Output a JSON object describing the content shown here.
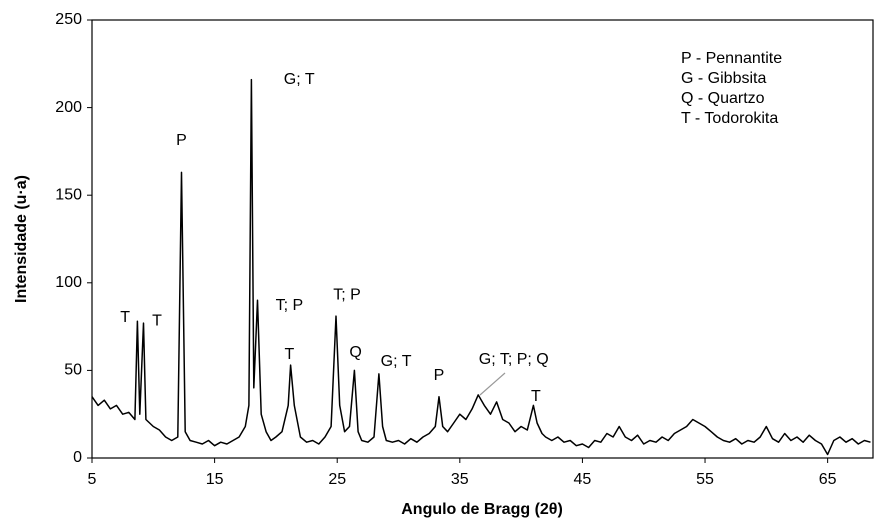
{
  "chart_data": {
    "type": "line",
    "x_label": "Angulo de Bragg (2θ)",
    "y_label": "Intensidade (u·a)",
    "xlim": [
      5,
      68.7
    ],
    "ylim": [
      0,
      250
    ],
    "xticks": [
      5,
      15,
      25,
      35,
      45,
      55,
      65
    ],
    "yticks": [
      0,
      50,
      100,
      150,
      200,
      250
    ],
    "key": [
      "P - Pennantite",
      "G - Gibbsita",
      "Q - Quartzo",
      "T - Todorokita"
    ],
    "series": [
      {
        "color": "#000000",
        "x": [
          5,
          5.5,
          6,
          6.5,
          7,
          7.5,
          8,
          8.5,
          8.7,
          8.9,
          9.2,
          9.4,
          9.7,
          10,
          10.5,
          11,
          11.5,
          12,
          12.3,
          12.6,
          13,
          13.5,
          14,
          14.5,
          15,
          15.5,
          16,
          16.5,
          17,
          17.5,
          17.8,
          18,
          18.2,
          18.5,
          18.8,
          19.2,
          19.6,
          20,
          20.5,
          21,
          21.2,
          21.5,
          22,
          22.5,
          23,
          23.5,
          24,
          24.5,
          24.9,
          25.2,
          25.6,
          26,
          26.4,
          26.7,
          27,
          27.5,
          28,
          28.4,
          28.7,
          29,
          29.5,
          30,
          30.5,
          31,
          31.5,
          32,
          32.5,
          33,
          33.3,
          33.6,
          34,
          34.5,
          35,
          35.5,
          36,
          36.5,
          37,
          37.5,
          38,
          38.5,
          39,
          39.5,
          40,
          40.5,
          41,
          41.3,
          41.7,
          42,
          42.5,
          43,
          43.5,
          44,
          44.5,
          45,
          45.5,
          46,
          46.5,
          47,
          47.5,
          48,
          48.5,
          49,
          49.5,
          50,
          50.5,
          51,
          51.5,
          52,
          52.5,
          53,
          53.5,
          54,
          54.5,
          55,
          55.5,
          56,
          56.5,
          57,
          57.5,
          58,
          58.5,
          59,
          59.5,
          60,
          60.5,
          61,
          61.5,
          62,
          62.5,
          63,
          63.5,
          64,
          64.5,
          65,
          65.5,
          66,
          66.5,
          67,
          67.5,
          68,
          68.5
        ],
        "values": [
          35,
          30,
          33,
          28,
          30,
          25,
          26,
          22,
          78,
          25,
          77,
          22,
          20,
          18,
          16,
          12,
          10,
          12,
          163,
          15,
          10,
          9,
          8,
          10,
          7,
          9,
          8,
          10,
          12,
          18,
          30,
          216,
          40,
          90,
          25,
          15,
          10,
          12,
          15,
          30,
          53,
          30,
          12,
          9,
          10,
          8,
          12,
          18,
          81,
          30,
          15,
          18,
          50,
          15,
          10,
          9,
          12,
          48,
          18,
          10,
          9,
          10,
          8,
          11,
          9,
          12,
          14,
          18,
          35,
          18,
          15,
          20,
          25,
          22,
          28,
          36,
          30,
          25,
          32,
          22,
          20,
          15,
          18,
          16,
          30,
          20,
          14,
          12,
          10,
          12,
          9,
          10,
          7,
          8,
          6,
          10,
          9,
          14,
          12,
          18,
          12,
          10,
          13,
          8,
          10,
          9,
          12,
          10,
          14,
          16,
          18,
          22,
          20,
          18,
          15,
          12,
          10,
          9,
          11,
          8,
          10,
          9,
          12,
          18,
          11,
          9,
          14,
          10,
          12,
          9,
          13,
          10,
          8,
          2,
          10,
          12,
          9,
          11,
          8,
          10,
          9
        ]
      }
    ],
    "annotations": [
      {
        "text": "T",
        "x": 7.7,
        "y": 80
      },
      {
        "text": "T",
        "x": 10.3,
        "y": 78
      },
      {
        "text": "P",
        "x": 12.3,
        "y": 181
      },
      {
        "text": "G; T",
        "x": 21.9,
        "y": 216
      },
      {
        "text": "T; P",
        "x": 21.1,
        "y": 87
      },
      {
        "text": "T",
        "x": 21.1,
        "y": 59
      },
      {
        "text": "T; P",
        "x": 25.8,
        "y": 93
      },
      {
        "text": "Q",
        "x": 26.5,
        "y": 60
      },
      {
        "text": "G; T",
        "x": 29.8,
        "y": 55
      },
      {
        "text": "P",
        "x": 33.3,
        "y": 47
      },
      {
        "text": "G; T; P; Q",
        "x": 39.4,
        "y": 56
      },
      {
        "text": "T",
        "x": 41.2,
        "y": 35
      }
    ]
  }
}
